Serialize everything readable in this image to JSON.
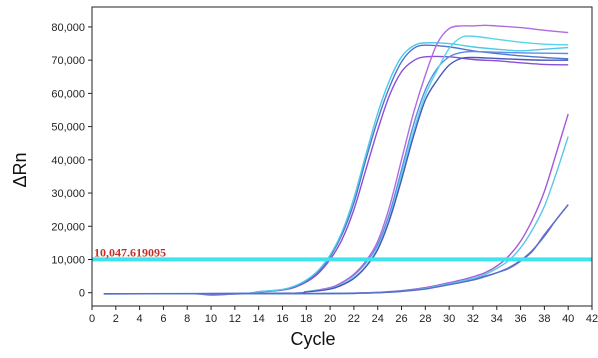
{
  "chart_data": {
    "type": "line",
    "title": "",
    "xlabel": "Cycle",
    "ylabel": "ΔRn",
    "xlim": [
      0,
      42
    ],
    "ylim": [
      -4000,
      86000
    ],
    "x_ticks": [
      0,
      2,
      4,
      6,
      8,
      10,
      12,
      14,
      16,
      18,
      20,
      22,
      24,
      26,
      28,
      30,
      32,
      34,
      36,
      38,
      40,
      42
    ],
    "y_ticks": [
      0,
      10000,
      20000,
      30000,
      40000,
      50000,
      60000,
      70000,
      80000
    ],
    "y_tick_labels": [
      "0",
      "10,000",
      "20,000",
      "30,000",
      "40,000",
      "50,000",
      "60,000",
      "70,000",
      "80,000"
    ],
    "grid": false,
    "threshold": {
      "value": 10047.619095,
      "label": "10,047.619095",
      "color": "#3fe3ee"
    },
    "series": [
      {
        "color": "#8a4fd6",
        "x": [
          1,
          12,
          14,
          16,
          17,
          18,
          19,
          20,
          21,
          22,
          23,
          24,
          25,
          26,
          27,
          28,
          30,
          32,
          34,
          36,
          38,
          40
        ],
        "y": [
          -300,
          -300,
          200,
          800,
          1600,
          3200,
          5800,
          10000,
          16000,
          25000,
          37000,
          49000,
          59500,
          66500,
          69800,
          71000,
          71000,
          70200,
          69800,
          69200,
          68700,
          68600
        ]
      },
      {
        "color": "#4f74d0",
        "x": [
          1,
          12,
          14,
          16,
          17,
          18,
          19,
          20,
          21,
          22,
          23,
          24,
          25,
          26,
          27,
          28,
          30,
          32,
          34,
          36,
          38,
          40
        ],
        "y": [
          -300,
          -300,
          300,
          900,
          1800,
          3500,
          6300,
          10800,
          17500,
          27000,
          40000,
          52000,
          62000,
          69500,
          73500,
          74500,
          74000,
          72800,
          72000,
          71300,
          70800,
          70400
        ]
      },
      {
        "color": "#4dc9e6",
        "x": [
          1,
          12,
          14,
          16,
          17,
          18,
          19,
          20,
          21,
          22,
          23,
          24,
          25,
          26,
          27,
          28,
          30,
          32,
          34,
          36,
          38,
          40
        ],
        "y": [
          -300,
          -300,
          300,
          1000,
          2000,
          3800,
          6700,
          11300,
          18300,
          28500,
          41500,
          54000,
          64000,
          71000,
          74300,
          75200,
          75000,
          74000,
          73300,
          72800,
          73300,
          73800
        ]
      },
      {
        "color": "#5a8fe0",
        "x": [
          1,
          16,
          18,
          20,
          21,
          22,
          23,
          24,
          25,
          26,
          27,
          28,
          29,
          30,
          31,
          32,
          34,
          36,
          38,
          40
        ],
        "y": [
          -300,
          -200,
          300,
          1500,
          3000,
          5300,
          9000,
          14500,
          24000,
          37000,
          50500,
          61000,
          67500,
          71000,
          72300,
          72600,
          72400,
          72200,
          72100,
          72000
        ]
      },
      {
        "color": "#b06be0",
        "x": [
          1,
          16,
          18,
          20,
          21,
          22,
          23,
          24,
          25,
          26,
          27,
          28,
          29,
          30,
          31,
          32,
          33,
          34,
          36,
          38,
          40
        ],
        "y": [
          -300,
          -200,
          300,
          1500,
          3100,
          5600,
          9500,
          15500,
          26000,
          40000,
          54000,
          65500,
          75000,
          79500,
          80300,
          80300,
          80500,
          80300,
          79800,
          79000,
          78300
        ]
      },
      {
        "color": "#56d4ea",
        "x": [
          1,
          16,
          18,
          20,
          21,
          22,
          23,
          24,
          25,
          26,
          27,
          28,
          29,
          30,
          31,
          32,
          34,
          36,
          38,
          40
        ],
        "y": [
          -300,
          -200,
          300,
          1200,
          2500,
          4600,
          8000,
          13500,
          22500,
          35500,
          48500,
          59500,
          67000,
          73500,
          76800,
          77200,
          76300,
          75400,
          74800,
          74600
        ]
      },
      {
        "color": "#4a56b8",
        "x": [
          1,
          16,
          18,
          20,
          21,
          22,
          23,
          24,
          25,
          26,
          27,
          28,
          29,
          30,
          31,
          32,
          34,
          36,
          38,
          40
        ],
        "y": [
          -300,
          -200,
          200,
          1100,
          2300,
          4300,
          7800,
          13000,
          22000,
          34000,
          47000,
          58000,
          64000,
          68500,
          70500,
          70800,
          70500,
          70200,
          70000,
          70000
        ]
      },
      {
        "color": "#7a6ad8",
        "x": [
          1,
          8,
          10,
          12,
          14,
          16,
          18,
          20,
          22,
          24,
          26,
          28,
          30,
          32,
          33,
          34,
          35,
          36,
          37,
          38,
          39,
          40
        ],
        "y": [
          -400,
          -300,
          -700,
          -400,
          -300,
          -300,
          -300,
          -200,
          -100,
          100,
          600,
          1500,
          2800,
          4200,
          5000,
          6000,
          7300,
          9500,
          12500,
          17500,
          22000,
          26500
        ]
      },
      {
        "color": "#a45ad8",
        "x": [
          1,
          10,
          14,
          18,
          22,
          24,
          26,
          28,
          30,
          31,
          32,
          33,
          34,
          35,
          36,
          37,
          38,
          39,
          40
        ],
        "y": [
          -300,
          -300,
          -300,
          -300,
          -200,
          0,
          500,
          1500,
          3000,
          3800,
          4800,
          6000,
          8000,
          11000,
          15500,
          22000,
          30500,
          42000,
          53800
        ]
      },
      {
        "color": "#5cc6e6",
        "x": [
          1,
          10,
          14,
          18,
          22,
          24,
          26,
          28,
          30,
          31,
          32,
          33,
          34,
          35,
          36,
          37,
          38,
          39,
          40
        ],
        "y": [
          -300,
          -300,
          -300,
          -300,
          -200,
          0,
          400,
          1300,
          2700,
          3500,
          4300,
          5500,
          7300,
          9700,
          13500,
          19000,
          26000,
          36000,
          47000
        ]
      },
      {
        "color": "#5570c8",
        "x": [
          1,
          10,
          14,
          18,
          22,
          24,
          26,
          28,
          30,
          32,
          33,
          34,
          35,
          36,
          37,
          38,
          39,
          40
        ],
        "y": [
          -300,
          -300,
          -300,
          -300,
          -200,
          0,
          400,
          1100,
          2400,
          3800,
          4800,
          6000,
          7500,
          9700,
          12800,
          17000,
          22000,
          26500
        ]
      }
    ]
  }
}
